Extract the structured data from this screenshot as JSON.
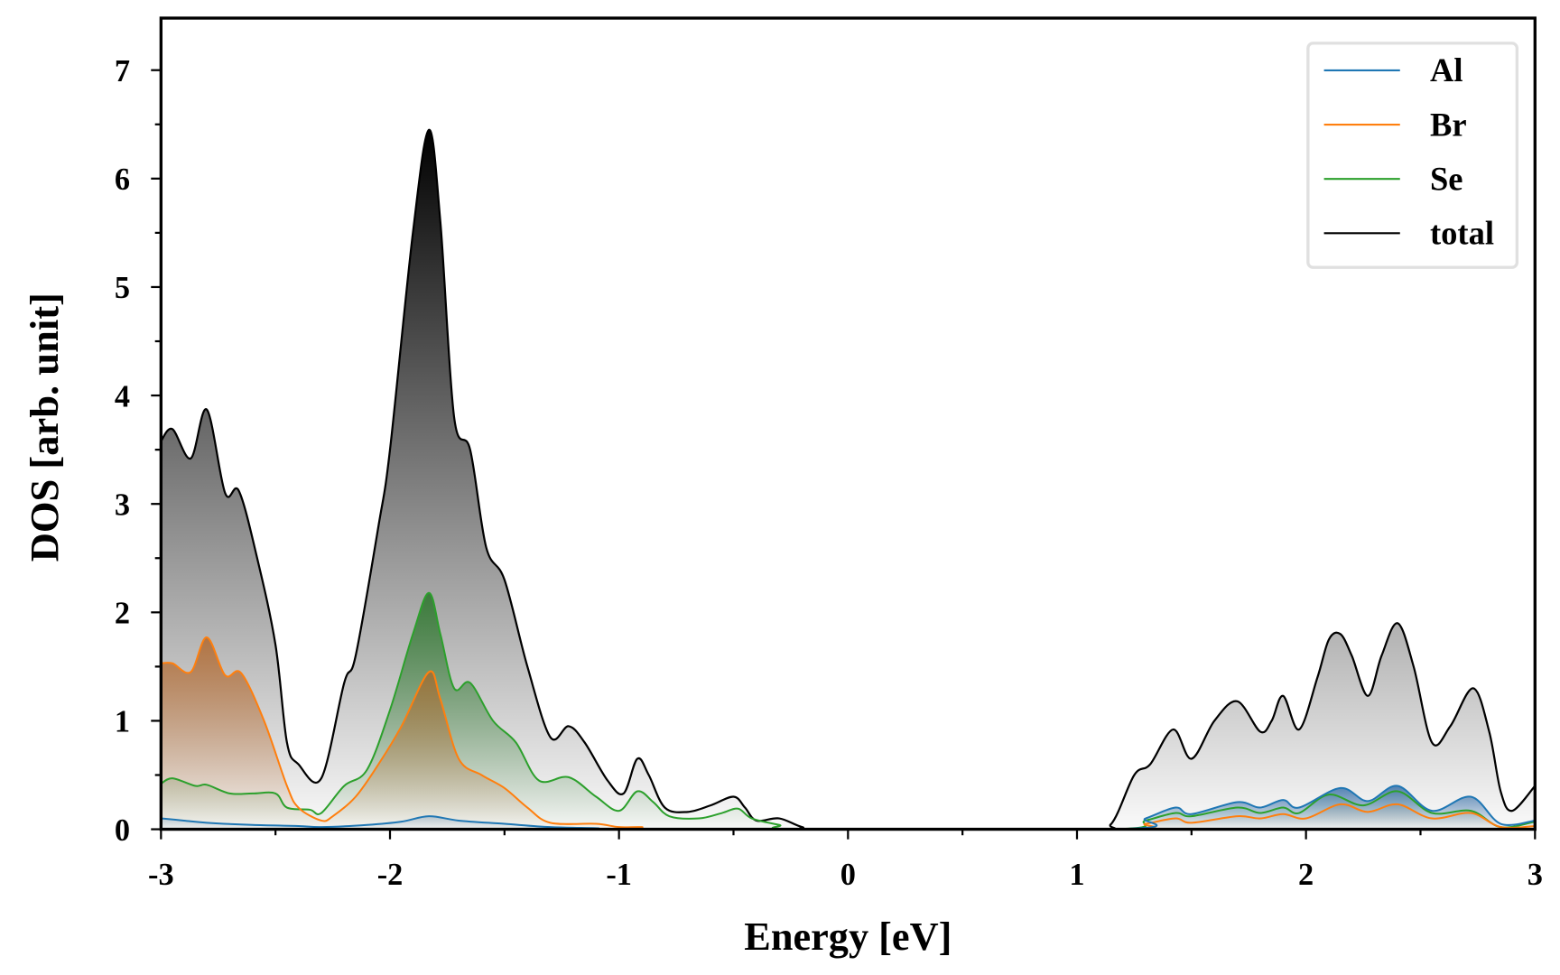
{
  "chart_data": {
    "type": "area",
    "title": "",
    "xlabel": "Energy [eV]",
    "ylabel": "DOS [arb. unit]",
    "xlim": [
      -3,
      3
    ],
    "ylim": [
      0,
      7.48
    ],
    "xticks": [
      "-3",
      "-2",
      "-1",
      "0",
      "1",
      "2",
      "3"
    ],
    "yticks": [
      "0",
      "1",
      "2",
      "3",
      "4",
      "5",
      "6",
      "7"
    ],
    "legend_placement": "top-right",
    "grid": false,
    "series": [
      {
        "name": "total",
        "color": "#000000",
        "fill": "#000000",
        "points": [
          [
            -3,
            3.58
          ],
          [
            -2.95,
            3.69
          ],
          [
            -2.87,
            3.42
          ],
          [
            -2.8,
            3.87
          ],
          [
            -2.72,
            3.1
          ],
          [
            -2.66,
            3.12
          ],
          [
            -2.58,
            2.5
          ],
          [
            -2.5,
            1.7
          ],
          [
            -2.45,
            0.8
          ],
          [
            -2.4,
            0.6
          ],
          [
            -2.3,
            0.47
          ],
          [
            -2.2,
            1.35
          ],
          [
            -2.15,
            1.6
          ],
          [
            -2.05,
            2.8
          ],
          [
            -2.0,
            3.5
          ],
          [
            -1.9,
            5.5
          ],
          [
            -1.83,
            6.45
          ],
          [
            -1.78,
            5.6
          ],
          [
            -1.72,
            3.8
          ],
          [
            -1.65,
            3.5
          ],
          [
            -1.58,
            2.6
          ],
          [
            -1.5,
            2.3
          ],
          [
            -1.4,
            1.5
          ],
          [
            -1.3,
            0.85
          ],
          [
            -1.22,
            0.95
          ],
          [
            -1.15,
            0.8
          ],
          [
            -1.05,
            0.45
          ],
          [
            -0.98,
            0.33
          ],
          [
            -0.92,
            0.65
          ],
          [
            -0.87,
            0.5
          ],
          [
            -0.8,
            0.2
          ],
          [
            -0.7,
            0.16
          ],
          [
            -0.6,
            0.22
          ],
          [
            -0.5,
            0.3
          ],
          [
            -0.45,
            0.2
          ],
          [
            -0.4,
            0.08
          ],
          [
            -0.3,
            0.1
          ],
          [
            -0.2,
            0.02
          ],
          [
            -0.1,
            0
          ],
          [
            1.05,
            0
          ],
          [
            1.15,
            0.05
          ],
          [
            1.25,
            0.5
          ],
          [
            1.32,
            0.6
          ],
          [
            1.42,
            0.92
          ],
          [
            1.5,
            0.65
          ],
          [
            1.6,
            1.0
          ],
          [
            1.7,
            1.18
          ],
          [
            1.8,
            0.9
          ],
          [
            1.85,
            1.0
          ],
          [
            1.9,
            1.23
          ],
          [
            1.97,
            0.92
          ],
          [
            2.05,
            1.4
          ],
          [
            2.1,
            1.75
          ],
          [
            2.15,
            1.8
          ],
          [
            2.2,
            1.6
          ],
          [
            2.27,
            1.23
          ],
          [
            2.33,
            1.6
          ],
          [
            2.4,
            1.9
          ],
          [
            2.47,
            1.5
          ],
          [
            2.55,
            0.8
          ],
          [
            2.63,
            0.95
          ],
          [
            2.73,
            1.3
          ],
          [
            2.8,
            0.9
          ],
          [
            2.85,
            0.35
          ],
          [
            2.9,
            0.17
          ],
          [
            3.0,
            0.4
          ]
        ]
      },
      {
        "name": "Se",
        "color": "#2ca02c",
        "fill": "#1a6e1a",
        "points": [
          [
            -3,
            0.42
          ],
          [
            -2.95,
            0.47
          ],
          [
            -2.85,
            0.4
          ],
          [
            -2.8,
            0.41
          ],
          [
            -2.7,
            0.33
          ],
          [
            -2.6,
            0.33
          ],
          [
            -2.5,
            0.33
          ],
          [
            -2.45,
            0.2
          ],
          [
            -2.35,
            0.18
          ],
          [
            -2.3,
            0.15
          ],
          [
            -2.2,
            0.4
          ],
          [
            -2.1,
            0.55
          ],
          [
            -2.0,
            1.1
          ],
          [
            -1.9,
            1.8
          ],
          [
            -1.83,
            2.18
          ],
          [
            -1.78,
            1.8
          ],
          [
            -1.72,
            1.3
          ],
          [
            -1.65,
            1.35
          ],
          [
            -1.55,
            1.0
          ],
          [
            -1.45,
            0.8
          ],
          [
            -1.35,
            0.45
          ],
          [
            -1.22,
            0.48
          ],
          [
            -1.1,
            0.3
          ],
          [
            -1.0,
            0.17
          ],
          [
            -0.92,
            0.35
          ],
          [
            -0.85,
            0.25
          ],
          [
            -0.78,
            0.12
          ],
          [
            -0.65,
            0.1
          ],
          [
            -0.55,
            0.15
          ],
          [
            -0.48,
            0.19
          ],
          [
            -0.42,
            0.1
          ],
          [
            -0.3,
            0.04
          ],
          [
            -0.2,
            0
          ],
          [
            1.15,
            0
          ],
          [
            1.3,
            0.08
          ],
          [
            1.43,
            0.15
          ],
          [
            1.5,
            0.12
          ],
          [
            1.7,
            0.2
          ],
          [
            1.8,
            0.15
          ],
          [
            1.9,
            0.2
          ],
          [
            1.97,
            0.15
          ],
          [
            2.1,
            0.32
          ],
          [
            2.25,
            0.22
          ],
          [
            2.4,
            0.35
          ],
          [
            2.55,
            0.15
          ],
          [
            2.72,
            0.17
          ],
          [
            2.85,
            0.02
          ],
          [
            3.0,
            0.07
          ]
        ]
      },
      {
        "name": "Br",
        "color": "#ff7f0e",
        "fill": "#b06020",
        "points": [
          [
            -3,
            1.53
          ],
          [
            -2.95,
            1.53
          ],
          [
            -2.87,
            1.45
          ],
          [
            -2.8,
            1.77
          ],
          [
            -2.72,
            1.42
          ],
          [
            -2.65,
            1.44
          ],
          [
            -2.55,
            1.0
          ],
          [
            -2.45,
            0.4
          ],
          [
            -2.4,
            0.2
          ],
          [
            -2.3,
            0.08
          ],
          [
            -2.25,
            0.12
          ],
          [
            -2.15,
            0.3
          ],
          [
            -2.05,
            0.6
          ],
          [
            -1.95,
            0.95
          ],
          [
            -1.83,
            1.45
          ],
          [
            -1.78,
            1.2
          ],
          [
            -1.7,
            0.65
          ],
          [
            -1.6,
            0.5
          ],
          [
            -1.5,
            0.38
          ],
          [
            -1.4,
            0.2
          ],
          [
            -1.3,
            0.06
          ],
          [
            -1.1,
            0.05
          ],
          [
            -1.0,
            0.02
          ],
          [
            -0.9,
            0.02
          ],
          [
            -0.8,
            0
          ],
          [
            1.15,
            0
          ],
          [
            1.3,
            0.05
          ],
          [
            1.43,
            0.1
          ],
          [
            1.5,
            0.06
          ],
          [
            1.7,
            0.12
          ],
          [
            1.8,
            0.1
          ],
          [
            1.9,
            0.14
          ],
          [
            2.0,
            0.1
          ],
          [
            2.15,
            0.23
          ],
          [
            2.27,
            0.16
          ],
          [
            2.4,
            0.23
          ],
          [
            2.55,
            0.1
          ],
          [
            2.72,
            0.15
          ],
          [
            2.85,
            0.02
          ],
          [
            3.0,
            0.03
          ]
        ]
      },
      {
        "name": "Al",
        "color": "#1f77b4",
        "fill": "#1f5f9f",
        "points": [
          [
            -3,
            0.1
          ],
          [
            -2.9,
            0.08
          ],
          [
            -2.8,
            0.06
          ],
          [
            -2.6,
            0.04
          ],
          [
            -2.4,
            0.03
          ],
          [
            -2.3,
            0.02
          ],
          [
            -2.1,
            0.04
          ],
          [
            -1.95,
            0.07
          ],
          [
            -1.83,
            0.12
          ],
          [
            -1.7,
            0.08
          ],
          [
            -1.5,
            0.05
          ],
          [
            -1.3,
            0.02
          ],
          [
            -1.1,
            0.01
          ],
          [
            -0.9,
            0
          ],
          [
            1.15,
            0
          ],
          [
            1.3,
            0.1
          ],
          [
            1.43,
            0.2
          ],
          [
            1.5,
            0.14
          ],
          [
            1.7,
            0.25
          ],
          [
            1.8,
            0.2
          ],
          [
            1.9,
            0.27
          ],
          [
            1.97,
            0.2
          ],
          [
            2.15,
            0.38
          ],
          [
            2.27,
            0.26
          ],
          [
            2.4,
            0.4
          ],
          [
            2.55,
            0.17
          ],
          [
            2.72,
            0.3
          ],
          [
            2.85,
            0.05
          ],
          [
            3.0,
            0.08
          ]
        ]
      }
    ],
    "legend": [
      "Al",
      "Br",
      "Se",
      "total"
    ]
  }
}
